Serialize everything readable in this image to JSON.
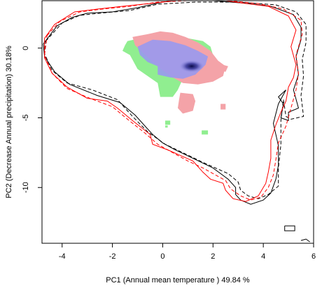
{
  "chart_data": {
    "type": "contour-density-overlay",
    "xlabel": "PC1 (Annual mean temperature ) 49.84 %",
    "ylabel": "PC2 (Decrease Annual precipitation) 30.18%",
    "xlim": [
      -4.8,
      6.0
    ],
    "ylim": [
      -14.0,
      3.4
    ],
    "x_ticks": [
      -4,
      -2,
      0,
      2,
      4,
      6
    ],
    "x_tick_labels": [
      "-4",
      "-2",
      "0",
      "2",
      "4",
      "6"
    ],
    "y_ticks": [
      0,
      -5,
      -10
    ],
    "y_tick_labels": [
      "0",
      "-5",
      "-10"
    ],
    "colors": {
      "green": "#90ee90",
      "red": "#f4a3a8",
      "blue": "#9999ee",
      "dark_blue": "#101060",
      "contour_black": "#000000",
      "contour_red": "#ff0000"
    },
    "contours": [
      {
        "color": "#000000",
        "dash": "solid",
        "points": [
          [
            -4.75,
            0.3
          ],
          [
            -4.2,
            1.6
          ],
          [
            -3.6,
            2.2
          ],
          [
            -3.0,
            2.5
          ],
          [
            -2.0,
            2.6
          ],
          [
            -1.0,
            2.9
          ],
          [
            0.0,
            3.3
          ],
          [
            0.5,
            3.4
          ],
          [
            2.0,
            3.4
          ],
          [
            3.4,
            3.2
          ],
          [
            4.3,
            3.0
          ],
          [
            5.2,
            2.4
          ],
          [
            5.5,
            1.5
          ],
          [
            5.5,
            0.6
          ],
          [
            5.3,
            -0.6
          ],
          [
            5.4,
            -1.9
          ],
          [
            5.2,
            -3.0
          ],
          [
            5.4,
            -4.3
          ],
          [
            5.0,
            -4.6
          ],
          [
            5.0,
            -5.2
          ],
          [
            4.7,
            -5.0
          ],
          [
            4.8,
            -4.0
          ],
          [
            4.6,
            -3.5
          ],
          [
            4.9,
            -3.0
          ],
          [
            4.6,
            -4.0
          ],
          [
            4.4,
            -5.4
          ],
          [
            4.6,
            -7.0
          ],
          [
            4.6,
            -8.4
          ],
          [
            4.5,
            -9.4
          ],
          [
            4.3,
            -10.4
          ],
          [
            4.0,
            -10.9
          ],
          [
            3.5,
            -11.2
          ],
          [
            3.1,
            -10.9
          ],
          [
            2.9,
            -10.5
          ],
          [
            2.9,
            -10.0
          ],
          [
            2.6,
            -9.4
          ],
          [
            2.0,
            -8.6
          ],
          [
            1.2,
            -7.9
          ],
          [
            0.5,
            -7.3
          ],
          [
            0.0,
            -6.8
          ],
          [
            -0.4,
            -6.2
          ],
          [
            -0.7,
            -5.6
          ],
          [
            -1.1,
            -4.8
          ],
          [
            -1.7,
            -3.9
          ],
          [
            -2.6,
            -3.4
          ],
          [
            -3.7,
            -2.6
          ],
          [
            -4.3,
            -1.7
          ],
          [
            -4.7,
            -0.6
          ],
          [
            -4.75,
            0.3
          ]
        ]
      },
      {
        "color": "#000000",
        "dash": "dashed",
        "points": [
          [
            -4.65,
            0.5
          ],
          [
            -4.0,
            1.8
          ],
          [
            -3.3,
            2.35
          ],
          [
            -2.5,
            2.5
          ],
          [
            -1.3,
            2.7
          ],
          [
            -0.2,
            3.15
          ],
          [
            1.3,
            3.3
          ],
          [
            3.0,
            3.3
          ],
          [
            4.5,
            3.1
          ],
          [
            5.3,
            2.6
          ],
          [
            5.7,
            1.7
          ],
          [
            5.7,
            0.4
          ],
          [
            5.55,
            -0.8
          ],
          [
            5.6,
            -2.0
          ],
          [
            5.5,
            -3.4
          ],
          [
            5.6,
            -4.9
          ],
          [
            5.1,
            -5.1
          ],
          [
            4.9,
            -4.9
          ],
          [
            4.8,
            -3.7
          ],
          [
            4.7,
            -5.2
          ],
          [
            4.7,
            -6.9
          ],
          [
            4.6,
            -8.6
          ],
          [
            4.6,
            -9.9
          ],
          [
            4.2,
            -10.5
          ],
          [
            3.8,
            -10.8
          ],
          [
            3.4,
            -10.6
          ],
          [
            3.1,
            -10.2
          ],
          [
            3.0,
            -9.6
          ],
          [
            2.6,
            -9.0
          ],
          [
            1.6,
            -8.2
          ],
          [
            0.8,
            -7.5
          ],
          [
            0.1,
            -6.9
          ],
          [
            -0.6,
            -6.0
          ],
          [
            -1.2,
            -4.9
          ],
          [
            -1.8,
            -3.7
          ],
          [
            -2.8,
            -3.0
          ],
          [
            -3.8,
            -2.5
          ],
          [
            -4.4,
            -1.6
          ],
          [
            -4.7,
            -0.4
          ],
          [
            -4.65,
            0.5
          ]
        ]
      },
      {
        "color": "#ff0000",
        "dash": "solid",
        "points": [
          [
            -4.7,
            0.7
          ],
          [
            -4.3,
            1.7
          ],
          [
            -3.5,
            2.6
          ],
          [
            -2.6,
            2.8
          ],
          [
            -1.6,
            3.0
          ],
          [
            -0.5,
            3.2
          ],
          [
            0.5,
            3.4
          ],
          [
            1.5,
            3.4
          ],
          [
            2.5,
            3.4
          ],
          [
            3.3,
            3.2
          ],
          [
            4.2,
            3.0
          ],
          [
            5.0,
            2.3
          ],
          [
            5.3,
            1.3
          ],
          [
            5.1,
            0.1
          ],
          [
            5.3,
            -1.2
          ],
          [
            5.2,
            -2.1
          ],
          [
            5.0,
            -2.8
          ],
          [
            4.9,
            -3.8
          ],
          [
            4.7,
            -4.6
          ],
          [
            4.5,
            -5.5
          ],
          [
            4.3,
            -6.6
          ],
          [
            4.3,
            -7.9
          ],
          [
            4.2,
            -8.9
          ],
          [
            4.1,
            -9.7
          ],
          [
            3.8,
            -10.6
          ],
          [
            3.3,
            -11.0
          ],
          [
            2.8,
            -10.8
          ],
          [
            2.5,
            -10.2
          ],
          [
            2.4,
            -9.7
          ],
          [
            1.9,
            -9.4
          ],
          [
            1.6,
            -8.9
          ],
          [
            1.2,
            -8.1
          ],
          [
            0.2,
            -7.3
          ],
          [
            -0.4,
            -6.9
          ],
          [
            -0.5,
            -6.2
          ],
          [
            -1.2,
            -5.2
          ],
          [
            -1.8,
            -4.3
          ],
          [
            -2.2,
            -3.8
          ],
          [
            -3.0,
            -3.6
          ],
          [
            -3.8,
            -2.8
          ],
          [
            -4.4,
            -1.8
          ],
          [
            -4.7,
            -0.7
          ],
          [
            -4.7,
            0.7
          ]
        ]
      },
      {
        "color": "#ff0000",
        "dash": "dashed",
        "points": [
          [
            -4.6,
            0.9
          ],
          [
            -4.1,
            1.9
          ],
          [
            -3.3,
            2.6
          ],
          [
            -2.4,
            2.8
          ],
          [
            -1.3,
            3.0
          ],
          [
            -0.2,
            3.3
          ],
          [
            1.0,
            3.4
          ],
          [
            2.6,
            3.4
          ],
          [
            3.8,
            3.2
          ],
          [
            4.8,
            2.8
          ],
          [
            5.5,
            2.0
          ],
          [
            5.55,
            1.0
          ],
          [
            5.3,
            -0.5
          ],
          [
            5.4,
            -1.8
          ],
          [
            5.3,
            -3.0
          ],
          [
            5.1,
            -4.3
          ],
          [
            4.9,
            -5.6
          ],
          [
            4.6,
            -6.8
          ],
          [
            4.5,
            -8.0
          ],
          [
            4.4,
            -9.1
          ],
          [
            4.2,
            -10.0
          ],
          [
            3.9,
            -10.7
          ],
          [
            3.5,
            -10.9
          ],
          [
            3.1,
            -10.6
          ],
          [
            2.7,
            -10.1
          ],
          [
            2.5,
            -9.5
          ],
          [
            2.1,
            -9.1
          ],
          [
            1.6,
            -8.6
          ],
          [
            1.0,
            -8.1
          ],
          [
            0.4,
            -7.5
          ],
          [
            -0.2,
            -6.9
          ],
          [
            -0.7,
            -6.1
          ],
          [
            -1.4,
            -5.1
          ],
          [
            -2.0,
            -4.2
          ],
          [
            -2.9,
            -3.6
          ],
          [
            -3.8,
            -2.9
          ],
          [
            -4.4,
            -1.8
          ],
          [
            -4.7,
            -0.5
          ],
          [
            -4.6,
            0.9
          ]
        ]
      }
    ],
    "small_contours": [
      {
        "color": "#000000",
        "dash": "solid",
        "points": [
          [
            4.85,
            -12.75
          ],
          [
            5.25,
            -12.75
          ],
          [
            5.25,
            -13.1
          ],
          [
            4.85,
            -13.1
          ],
          [
            4.85,
            -12.75
          ]
        ]
      },
      {
        "color": "#000000",
        "dash": "solid",
        "points": [
          [
            5.5,
            -13.8
          ],
          [
            5.7,
            -13.7
          ],
          [
            5.85,
            -13.9
          ]
        ]
      }
    ],
    "density_regions": {
      "green": [
        [
          [
            -1.4,
            0.5
          ],
          [
            -0.9,
            0.7
          ],
          [
            -0.3,
            0.8
          ],
          [
            0.3,
            0.8
          ],
          [
            1.0,
            0.7
          ],
          [
            1.6,
            0.5
          ],
          [
            1.9,
            0.1
          ],
          [
            2.0,
            -0.5
          ],
          [
            1.9,
            -1.1
          ],
          [
            1.6,
            -1.6
          ],
          [
            1.2,
            -1.9
          ],
          [
            0.8,
            -2.2
          ],
          [
            0.6,
            -3.0
          ],
          [
            0.4,
            -3.5
          ],
          [
            -0.1,
            -3.5
          ],
          [
            -0.2,
            -2.5
          ],
          [
            -0.6,
            -2.0
          ],
          [
            -1.0,
            -1.5
          ],
          [
            -1.3,
            -0.5
          ],
          [
            -1.6,
            -0.2
          ],
          [
            -1.5,
            0.2
          ],
          [
            -1.4,
            0.5
          ]
        ],
        [
          [
            0.1,
            -5.2
          ],
          [
            0.3,
            -5.2
          ],
          [
            0.3,
            -5.5
          ],
          [
            0.1,
            -5.5
          ]
        ],
        [
          [
            1.55,
            -5.9
          ],
          [
            1.8,
            -5.9
          ],
          [
            1.8,
            -6.2
          ],
          [
            1.55,
            -6.2
          ]
        ],
        [
          [
            0.1,
            -5.55
          ],
          [
            0.2,
            -5.55
          ],
          [
            0.2,
            -5.7
          ],
          [
            0.1,
            -5.7
          ]
        ]
      ],
      "red": [
        [
          [
            -1.2,
            0.8
          ],
          [
            -0.6,
            1.0
          ],
          [
            -0.1,
            1.2
          ],
          [
            0.4,
            1.1
          ],
          [
            0.9,
            0.8
          ],
          [
            1.4,
            0.4
          ],
          [
            1.9,
            -0.2
          ],
          [
            2.2,
            -0.9
          ],
          [
            2.5,
            -1.3
          ],
          [
            2.4,
            -2.0
          ],
          [
            2.0,
            -2.4
          ],
          [
            1.4,
            -2.6
          ],
          [
            0.8,
            -2.5
          ],
          [
            0.4,
            -2.1
          ],
          [
            0.0,
            -1.6
          ],
          [
            -0.4,
            -1.0
          ],
          [
            -0.8,
            -0.3
          ],
          [
            -1.1,
            0.2
          ],
          [
            -1.2,
            0.8
          ]
        ],
        [
          [
            2.4,
            -1.2
          ],
          [
            2.6,
            -1.3
          ],
          [
            2.5,
            -1.7
          ],
          [
            2.3,
            -1.6
          ]
        ],
        [
          [
            0.7,
            -3.2
          ],
          [
            1.2,
            -3.3
          ],
          [
            1.3,
            -3.8
          ],
          [
            1.2,
            -4.5
          ],
          [
            0.8,
            -4.7
          ],
          [
            0.6,
            -4.3
          ],
          [
            0.65,
            -3.7
          ],
          [
            0.7,
            -3.2
          ]
        ],
        [
          [
            2.3,
            -4.0
          ],
          [
            2.5,
            -4.0
          ],
          [
            2.5,
            -4.4
          ],
          [
            2.3,
            -4.4
          ]
        ]
      ],
      "blue": [
        [
          [
            -1.0,
            0.1
          ],
          [
            -0.4,
            0.6
          ],
          [
            0.3,
            0.5
          ],
          [
            0.9,
            0.2
          ],
          [
            1.4,
            -0.2
          ],
          [
            1.8,
            -0.6
          ],
          [
            1.7,
            -1.2
          ],
          [
            1.3,
            -1.9
          ],
          [
            0.8,
            -2.2
          ],
          [
            0.3,
            -2.1
          ],
          [
            -0.2,
            -1.9
          ],
          [
            -0.2,
            -1.3
          ],
          [
            -0.6,
            -1.0
          ],
          [
            -0.9,
            -0.5
          ],
          [
            -1.0,
            0.1
          ]
        ]
      ],
      "blue_core_center": [
        1.15,
        -1.3
      ],
      "blue_core_radius": [
        0.5,
        0.45
      ]
    }
  }
}
